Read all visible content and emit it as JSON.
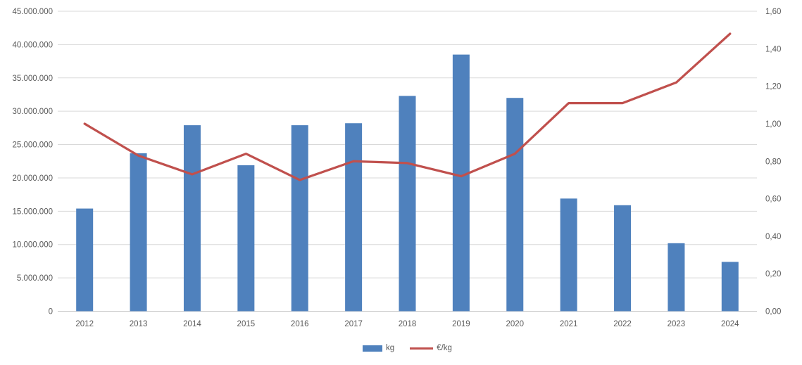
{
  "chart_data": {
    "type": "combo (bar + line, dual axis)",
    "categories": [
      "2012",
      "2013",
      "2014",
      "2015",
      "2016",
      "2017",
      "2018",
      "2019",
      "2020",
      "2021",
      "2022",
      "2023",
      "2024"
    ],
    "series": [
      {
        "name": "kg",
        "type": "bar",
        "axis": "left",
        "color": "#4F81BD",
        "values": [
          15400000,
          23700000,
          27900000,
          21900000,
          27900000,
          28200000,
          32300000,
          38500000,
          32000000,
          16900000,
          15900000,
          10200000,
          7400000
        ]
      },
      {
        "name": "€/kg",
        "type": "line",
        "axis": "right",
        "color": "#C0504D",
        "values": [
          1.0,
          0.83,
          0.73,
          0.84,
          0.7,
          0.8,
          0.79,
          0.72,
          0.84,
          1.11,
          1.11,
          1.22,
          1.48
        ]
      }
    ],
    "left_axis": {
      "min": 0,
      "max": 45000000,
      "step": 5000000,
      "tick_labels": [
        "0",
        "5.000.000",
        "10.000.000",
        "15.000.000",
        "20.000.000",
        "25.000.000",
        "30.000.000",
        "35.000.000",
        "40.000.000",
        "45.000.000"
      ]
    },
    "right_axis": {
      "min": 0,
      "max": 1.6,
      "step": 0.2,
      "tick_labels": [
        "0,00",
        "0,20",
        "0,40",
        "0,60",
        "0,80",
        "1,00",
        "1,20",
        "1,40",
        "1,60"
      ]
    },
    "grid": true,
    "legend_position": "bottom",
    "title": "",
    "xlabel": "",
    "ylabel_left": "",
    "ylabel_right": "",
    "colors": {
      "bar": "#4F81BD",
      "line": "#C0504D",
      "gridline": "#D9D9D9",
      "axis_line": "#BFBFBF",
      "axis_text": "#595959"
    }
  }
}
